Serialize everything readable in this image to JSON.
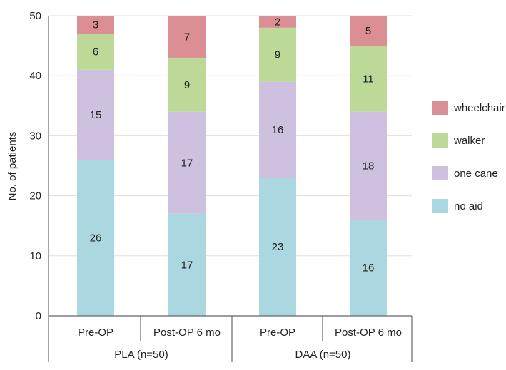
{
  "chart_data": {
    "type": "bar",
    "stacked": true,
    "title": "",
    "ylabel": "No. of patients",
    "ylim": [
      0,
      50
    ],
    "yticks": [
      0,
      10,
      20,
      30,
      40,
      50
    ],
    "categories": [
      "Pre-OP",
      "Post-OP 6 mo",
      "Pre-OP",
      "Post-OP 6 mo"
    ],
    "groups": [
      {
        "label": "PLA (n=50)",
        "categories": [
          0,
          1
        ]
      },
      {
        "label": "DAA (n=50)",
        "categories": [
          2,
          3
        ]
      }
    ],
    "series": [
      {
        "name": "no aid",
        "color": "#abd8e0",
        "values": [
          26,
          17,
          23,
          16
        ]
      },
      {
        "name": "one cane",
        "color": "#cdc1df",
        "values": [
          15,
          17,
          16,
          18
        ]
      },
      {
        "name": "walker",
        "color": "#bcd998",
        "values": [
          6,
          9,
          9,
          11
        ]
      },
      {
        "name": "wheelchair",
        "color": "#db8f94",
        "values": [
          3,
          7,
          2,
          5
        ]
      }
    ],
    "legend": {
      "position": "right",
      "order": [
        "wheelchair",
        "walker",
        "one cane",
        "no aid"
      ]
    }
  }
}
